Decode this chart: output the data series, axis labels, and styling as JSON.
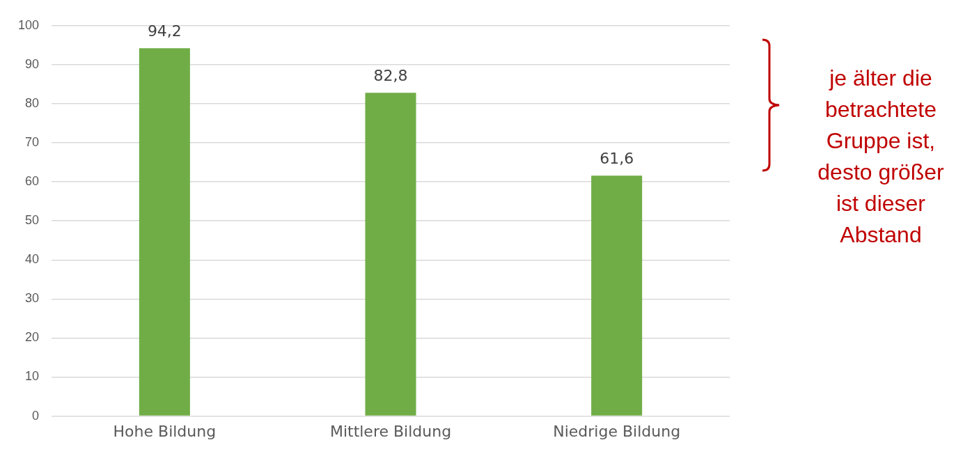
{
  "chart_data": {
    "type": "bar",
    "categories": [
      "Hohe Bildung",
      "Mittlere Bildung",
      "Niedrige Bildung"
    ],
    "values": [
      94.2,
      82.8,
      61.6
    ],
    "value_labels": [
      "94,2",
      "82,8",
      "61,6"
    ],
    "color": "#70ad47",
    "ylim": [
      0,
      100
    ],
    "yticks": [
      0,
      10,
      20,
      30,
      40,
      50,
      60,
      70,
      80,
      90,
      100
    ],
    "grid": "y",
    "legend": false,
    "annotations": [
      "je älter die betrachtete Gruppe ist, desto größer ist dieser Abstand"
    ]
  }
}
